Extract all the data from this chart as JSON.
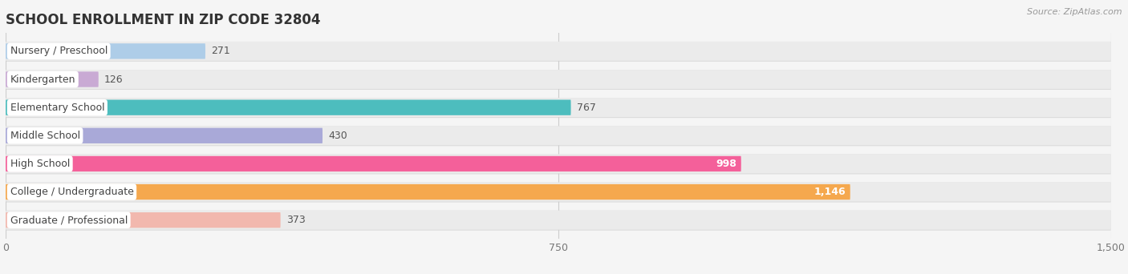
{
  "title": "SCHOOL ENROLLMENT IN ZIP CODE 32804",
  "source": "Source: ZipAtlas.com",
  "categories": [
    "Nursery / Preschool",
    "Kindergarten",
    "Elementary School",
    "Middle School",
    "High School",
    "College / Undergraduate",
    "Graduate / Professional"
  ],
  "values": [
    271,
    126,
    767,
    430,
    998,
    1146,
    373
  ],
  "bar_colors": [
    "#aecde8",
    "#c9aad4",
    "#4dbdbe",
    "#a9a9d8",
    "#f4609a",
    "#f5a84e",
    "#f2b8ae"
  ],
  "track_color": "#ebebeb",
  "track_border_color": "#d8d8d8",
  "background_color": "#f5f5f5",
  "xlim": [
    0,
    1500
  ],
  "xticks": [
    0,
    750,
    1500
  ],
  "title_fontsize": 12,
  "label_fontsize": 9,
  "value_fontsize": 9
}
